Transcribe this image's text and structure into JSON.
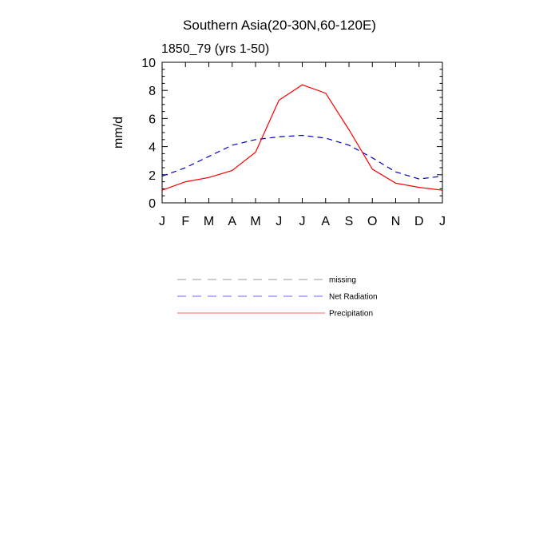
{
  "chart_data": {
    "type": "line",
    "title": "Southern Asia(20-30N,60-120E)",
    "subtitle": "1850_79 (yrs 1-50)",
    "xlabel": "",
    "ylabel": "mm/d",
    "categories": [
      "J",
      "F",
      "M",
      "A",
      "M",
      "J",
      "J",
      "A",
      "S",
      "O",
      "N",
      "D",
      "J"
    ],
    "ylim": [
      0,
      10
    ],
    "yticks": [
      0,
      2,
      4,
      6,
      8,
      10
    ],
    "grid": false,
    "legend_position": "bottom",
    "series": [
      {
        "name": "Net Radiation",
        "color": "#0000cc",
        "style": "dashed",
        "values": [
          1.9,
          2.5,
          3.3,
          4.1,
          4.5,
          4.7,
          4.8,
          4.6,
          4.1,
          3.2,
          2.2,
          1.7,
          1.9
        ]
      },
      {
        "name": "Precipitation",
        "color": "#ff0000",
        "style": "solid",
        "values": [
          0.9,
          1.5,
          1.8,
          2.3,
          3.6,
          7.3,
          8.4,
          7.8,
          5.2,
          2.4,
          1.4,
          1.1,
          0.9
        ]
      }
    ],
    "legend": [
      {
        "label": "missing",
        "color": "#999999",
        "style": "dashed"
      },
      {
        "label": "Net Radiation",
        "color": "#6666ff",
        "style": "dashed"
      },
      {
        "label": "Precipitation",
        "color": "#ff6666",
        "style": "solid"
      }
    ]
  }
}
